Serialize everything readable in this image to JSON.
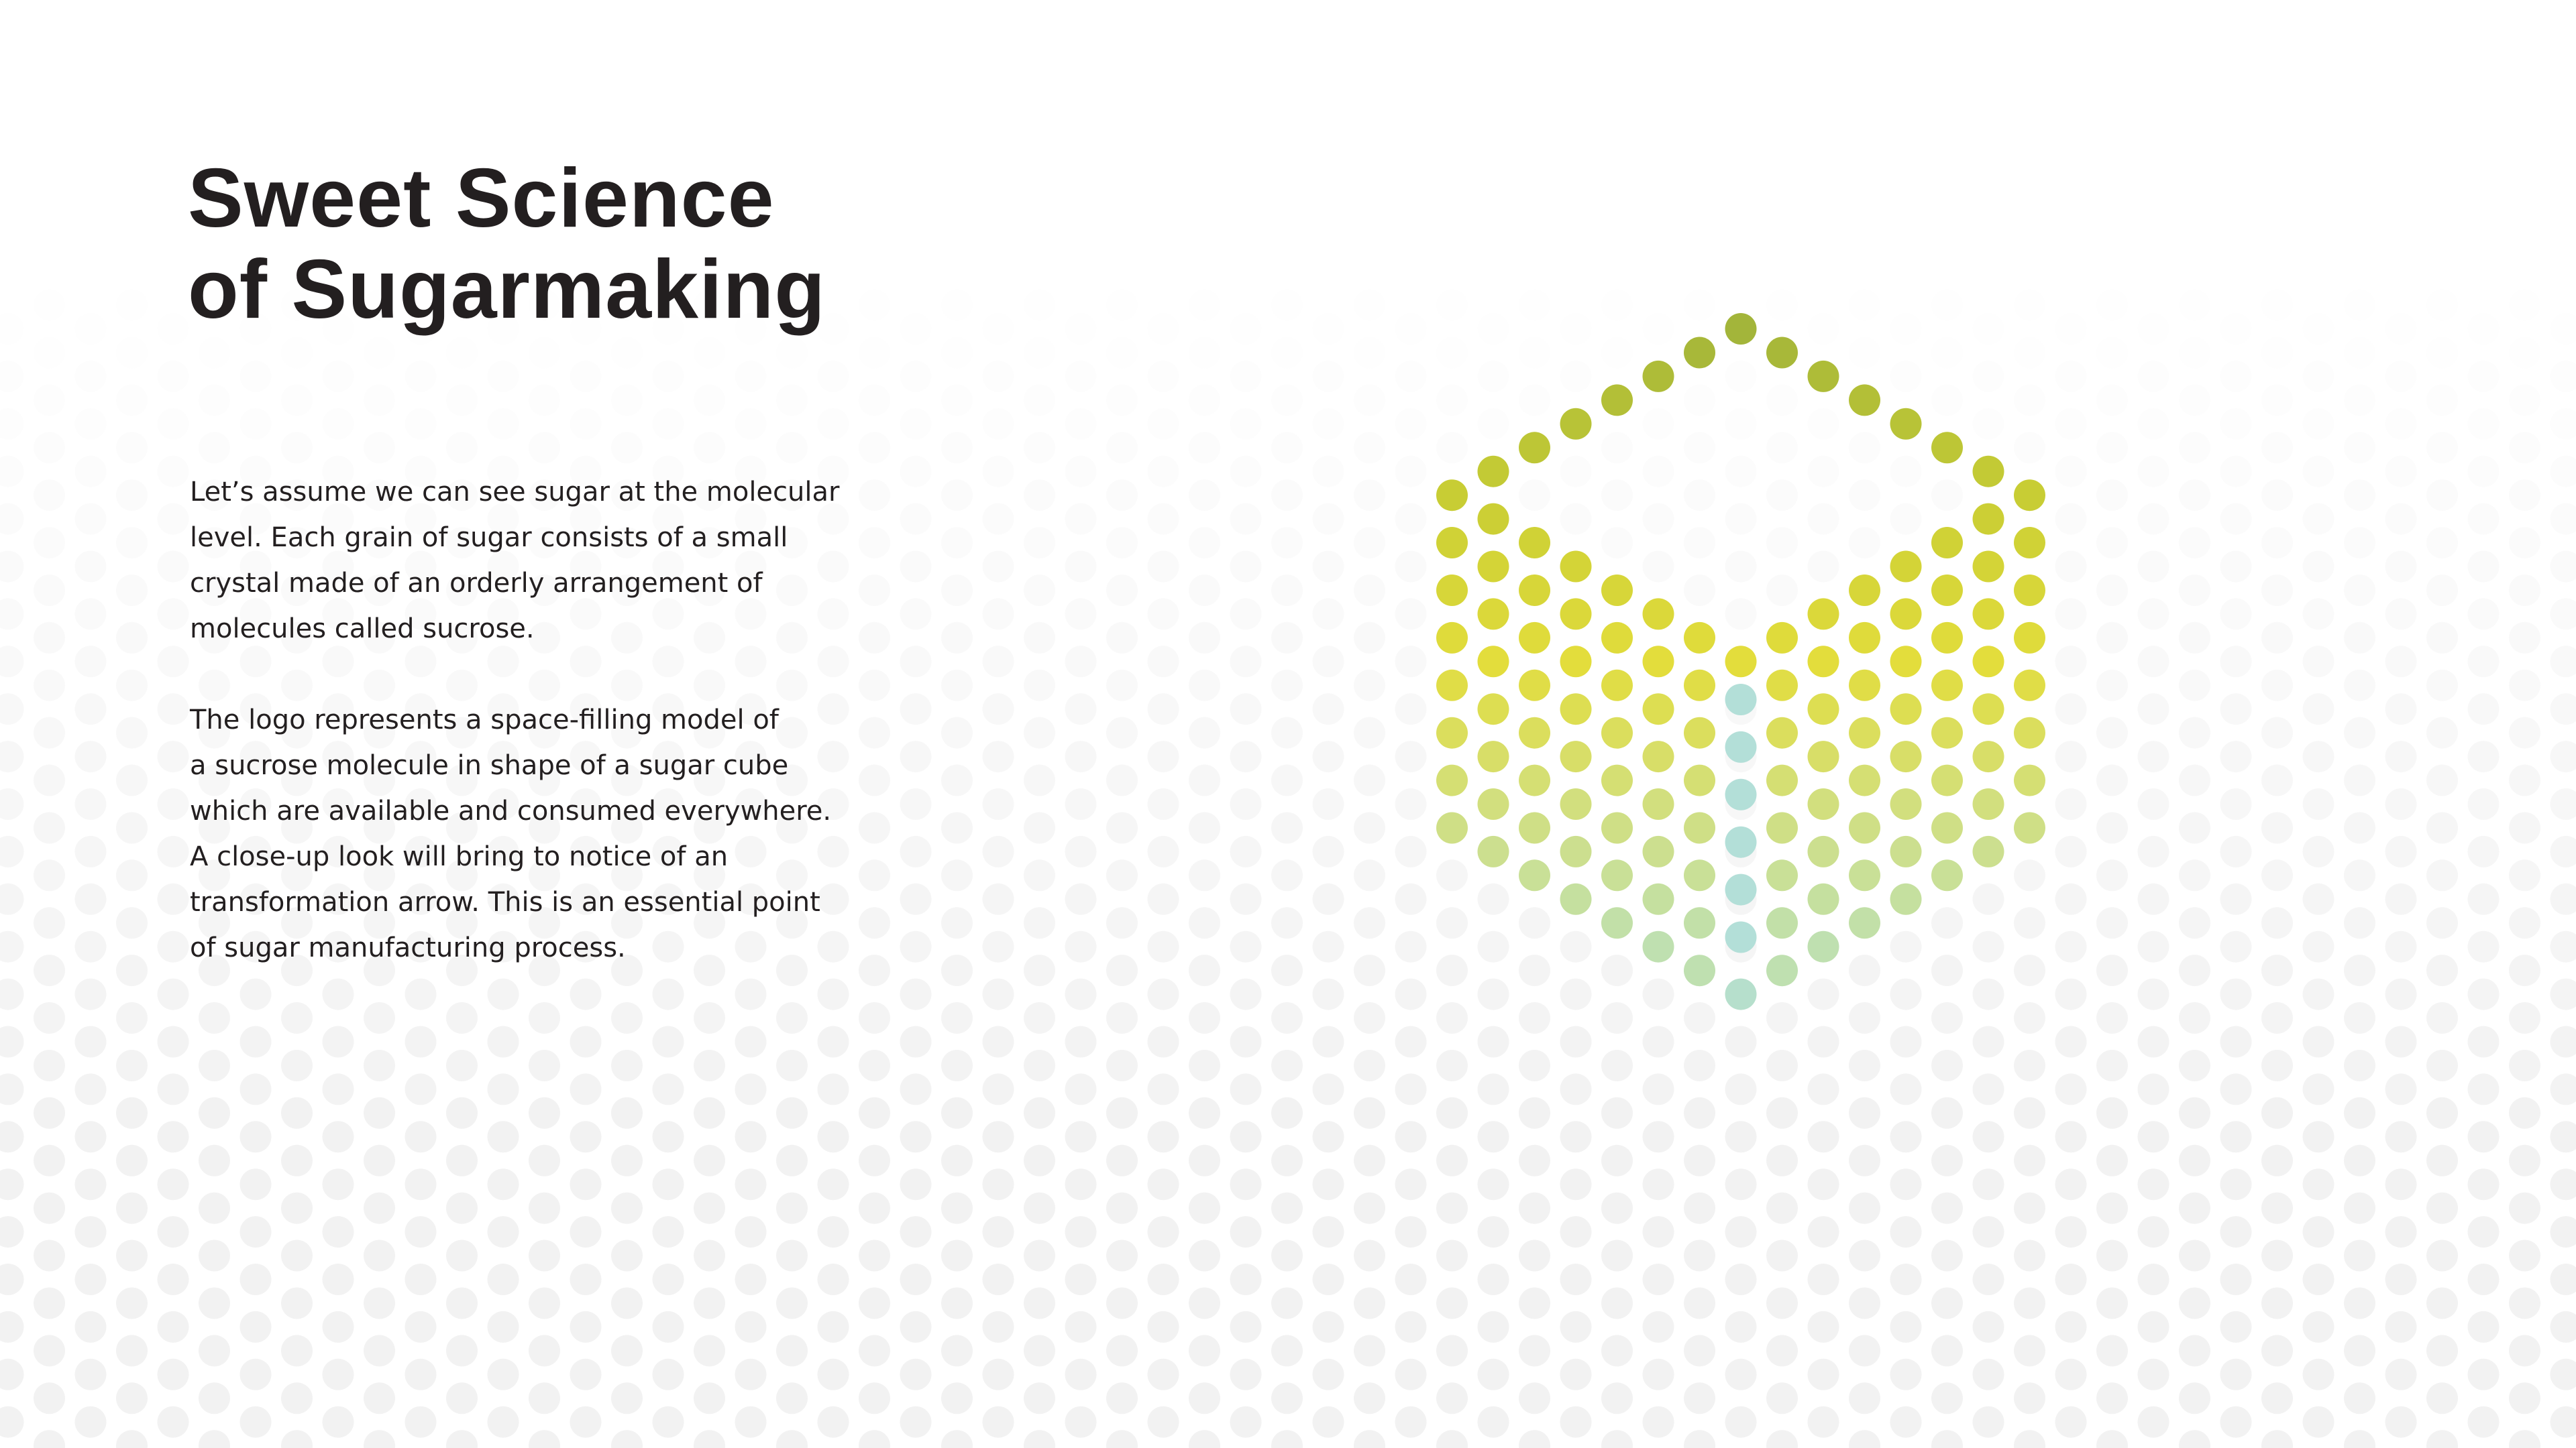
{
  "slide": {
    "title_lines": [
      "Sweet Science",
      "of Sugarmaking"
    ],
    "paragraphs": [
      [
        "Let’s assume we can see sugar at the molecular",
        "level. Each grain of sugar consists of a small",
        "crystal made of an orderly arrangement of",
        "molecules called sucrose."
      ],
      [
        "The logo represents a space-filling model of",
        "a sucrose molecule in shape of a sugar cube",
        "which are available and consumed everywhere.",
        "A close-up look will bring to notice of an",
        "transformation arrow. This is an essential point",
        "of sugar manufacturing process."
      ]
    ]
  },
  "logo": {
    "name": "sugar-cube-dot-logo",
    "colors": {
      "top": "#a3b53a",
      "upper": "#c8cd34",
      "middle": "#e3dd3c",
      "lower": "#d2df7e",
      "bottom": "#bfe0b0",
      "arrow": "#b3dfd8",
      "arrow_tip": "#b6dfcc"
    }
  },
  "background": {
    "pattern": "fading-dot-grid",
    "dot_color": "#f2f2f2"
  }
}
